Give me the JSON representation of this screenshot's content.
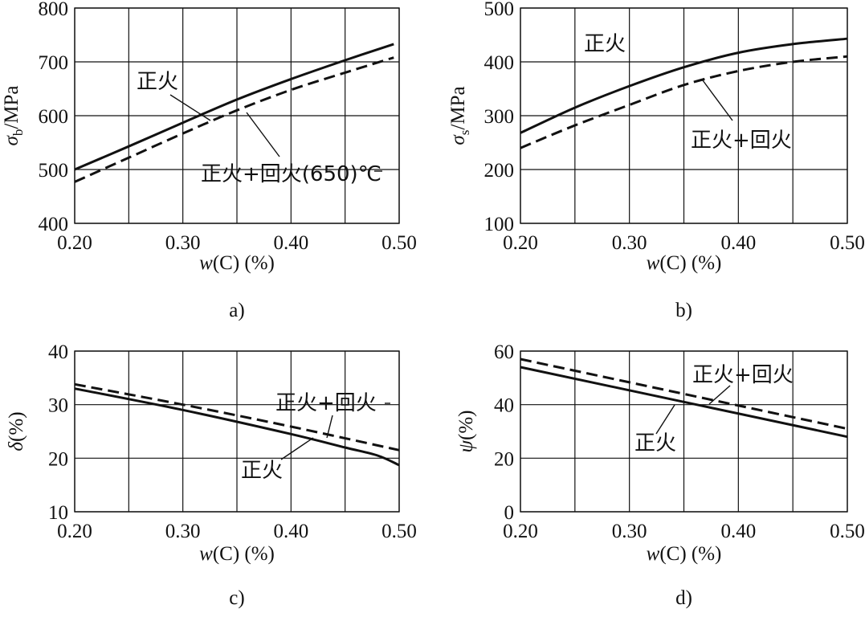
{
  "chart_data": [
    {
      "type": "line",
      "label": "a)",
      "xlabel_var": "w",
      "xlabel_rest": "(C) (%)",
      "ylabel_sym": "σ",
      "ylabel_sub": "b",
      "ylabel_unit": "/MPa",
      "xlim": [
        0.2,
        0.5
      ],
      "ylim": [
        400,
        800
      ],
      "xticks": [
        0.2,
        0.3,
        0.4,
        0.5
      ],
      "xtick_labels": [
        "0.20",
        "0.30",
        "0.40",
        "0.50"
      ],
      "yticks": [
        400,
        500,
        600,
        700,
        800
      ],
      "ytick_labels": [
        "400",
        "500",
        "600",
        "700",
        "800"
      ],
      "grid": true,
      "series": [
        {
          "name": "正火",
          "style": "solid",
          "x": [
            0.2,
            0.25,
            0.3,
            0.35,
            0.4,
            0.45,
            0.495
          ],
          "y": [
            500,
            543,
            587,
            630,
            668,
            703,
            733
          ]
        },
        {
          "name": "正火+回火(650)℃",
          "style": "dashed",
          "x": [
            0.2,
            0.25,
            0.3,
            0.35,
            0.4,
            0.45,
            0.495
          ],
          "y": [
            477,
            522,
            567,
            610,
            648,
            680,
            708
          ]
        }
      ],
      "annotations": [
        {
          "text": "正火",
          "series": 0
        },
        {
          "text": "正火+回火(650)℃",
          "series": 1
        }
      ]
    },
    {
      "type": "line",
      "label": "b)",
      "xlabel_var": "w",
      "xlabel_rest": "(C) (%)",
      "ylabel_sym": "σ",
      "ylabel_sub": "s",
      "ylabel_unit": "/MPa",
      "xlim": [
        0.2,
        0.5
      ],
      "ylim": [
        100,
        500
      ],
      "xticks": [
        0.2,
        0.3,
        0.4,
        0.5
      ],
      "xtick_labels": [
        "0.20",
        "0.30",
        "0.40",
        "0.50"
      ],
      "yticks": [
        100,
        200,
        300,
        400,
        500
      ],
      "ytick_labels": [
        "100",
        "200",
        "300",
        "400",
        "500"
      ],
      "grid": true,
      "series": [
        {
          "name": "正火",
          "style": "solid",
          "x": [
            0.2,
            0.25,
            0.3,
            0.35,
            0.4,
            0.45,
            0.5
          ],
          "y": [
            268,
            315,
            355,
            390,
            417,
            433,
            443
          ]
        },
        {
          "name": "正火+回火",
          "style": "dashed",
          "x": [
            0.2,
            0.25,
            0.3,
            0.35,
            0.4,
            0.45,
            0.5
          ],
          "y": [
            240,
            282,
            320,
            357,
            383,
            400,
            410
          ]
        }
      ],
      "annotations": [
        {
          "text": "正火",
          "series": 0
        },
        {
          "text": "正火+回火",
          "series": 1
        }
      ]
    },
    {
      "type": "line",
      "label": "c)",
      "xlabel_var": "w",
      "xlabel_rest": "(C) (%)",
      "ylabel_sym": "δ",
      "ylabel_sub": "",
      "ylabel_unit": "(%)",
      "xlim": [
        0.2,
        0.5
      ],
      "ylim": [
        10,
        40
      ],
      "xticks": [
        0.2,
        0.3,
        0.4,
        0.5
      ],
      "xtick_labels": [
        "0.20",
        "0.30",
        "0.40",
        "0.50"
      ],
      "yticks": [
        10,
        20,
        30,
        40
      ],
      "ytick_labels": [
        "10",
        "20",
        "30",
        "40"
      ],
      "grid": true,
      "series": [
        {
          "name": "正火",
          "style": "solid",
          "x": [
            0.2,
            0.3,
            0.4,
            0.45,
            0.48,
            0.5
          ],
          "y": [
            33.0,
            29.0,
            24.5,
            22.0,
            20.5,
            18.7
          ]
        },
        {
          "name": "正火+回火",
          "style": "dashed",
          "x": [
            0.2,
            0.3,
            0.4,
            0.5
          ],
          "y": [
            33.8,
            30.0,
            25.9,
            21.5
          ]
        }
      ],
      "annotations": [
        {
          "text": "正火+回火",
          "series": 1
        },
        {
          "text": "正火",
          "series": 0
        }
      ]
    },
    {
      "type": "line",
      "label": "d)",
      "xlabel_var": "w",
      "xlabel_rest": "(C) (%)",
      "ylabel_sym": "ψ",
      "ylabel_sub": "",
      "ylabel_unit": "(%)",
      "xlim": [
        0.2,
        0.5
      ],
      "ylim": [
        0,
        60
      ],
      "xticks": [
        0.2,
        0.3,
        0.4,
        0.5
      ],
      "xtick_labels": [
        "0.20",
        "0.30",
        "0.40",
        "0.50"
      ],
      "yticks": [
        0,
        20,
        40,
        60
      ],
      "ytick_labels": [
        "0",
        "20",
        "40",
        "60"
      ],
      "grid": true,
      "series": [
        {
          "name": "正火",
          "style": "solid",
          "x": [
            0.2,
            0.5
          ],
          "y": [
            54,
            28
          ]
        },
        {
          "name": "正火+回火",
          "style": "dashed",
          "x": [
            0.2,
            0.5
          ],
          "y": [
            57,
            31
          ]
        }
      ],
      "annotations": [
        {
          "text": "正火+回火",
          "series": 1
        },
        {
          "text": "正火",
          "series": 0
        }
      ]
    }
  ]
}
